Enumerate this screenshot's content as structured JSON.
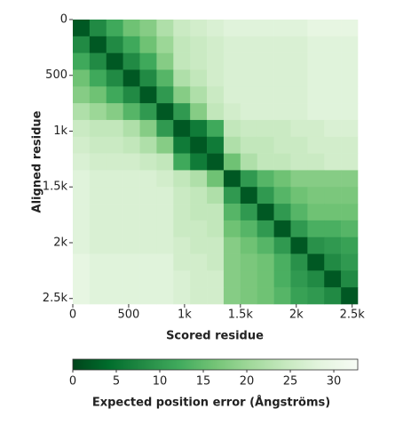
{
  "chart_data": {
    "type": "heatmap",
    "xlabel": "Scored residue",
    "ylabel": "Aligned residue",
    "bins": [
      0,
      150,
      300,
      450,
      600,
      750,
      900,
      1050,
      1200,
      1350,
      1500,
      1650,
      1800,
      1950,
      2100,
      2250,
      2400,
      2550
    ],
    "xlim": [
      0,
      2550
    ],
    "ylim": [
      0,
      2550
    ],
    "xticks": [
      0,
      500,
      {
        "value": 1000,
        "label": "1k"
      },
      {
        "value": 1500,
        "label": "1.5k"
      },
      {
        "value": 2000,
        "label": "2k"
      },
      {
        "value": 2500,
        "label": "2.5k"
      }
    ],
    "yticks": [
      0,
      500,
      {
        "value": 1000,
        "label": "1k"
      },
      {
        "value": 1500,
        "label": "1.5k"
      },
      {
        "value": 2000,
        "label": "2k"
      },
      {
        "value": 2500,
        "label": "2.5k"
      }
    ],
    "values": [
      [
        2,
        8,
        12,
        16,
        18,
        22,
        25,
        26,
        27,
        28,
        28,
        28,
        28,
        28,
        29,
        29,
        29
      ],
      [
        8,
        2,
        8,
        12,
        16,
        20,
        24,
        25,
        26,
        27,
        27,
        27,
        27,
        27,
        28,
        28,
        28
      ],
      [
        12,
        8,
        2,
        8,
        12,
        18,
        24,
        25,
        26,
        27,
        27,
        27,
        27,
        27,
        28,
        28,
        28
      ],
      [
        16,
        12,
        8,
        2,
        8,
        14,
        22,
        24,
        26,
        27,
        27,
        27,
        27,
        27,
        28,
        28,
        28
      ],
      [
        18,
        16,
        12,
        8,
        2,
        10,
        18,
        22,
        25,
        27,
        27,
        27,
        27,
        27,
        28,
        28,
        28
      ],
      [
        22,
        20,
        18,
        14,
        10,
        2,
        10,
        18,
        24,
        26,
        27,
        27,
        27,
        27,
        28,
        28,
        28
      ],
      [
        25,
        24,
        24,
        22,
        18,
        10,
        2,
        6,
        12,
        24,
        25,
        25,
        25,
        26,
        26,
        27,
        27
      ],
      [
        26,
        25,
        25,
        24,
        22,
        18,
        6,
        2,
        6,
        22,
        24,
        24,
        25,
        25,
        26,
        26,
        26
      ],
      [
        27,
        26,
        26,
        26,
        25,
        24,
        12,
        6,
        2,
        16,
        22,
        24,
        24,
        25,
        25,
        26,
        26
      ],
      [
        28,
        27,
        27,
        27,
        27,
        26,
        24,
        22,
        16,
        2,
        10,
        14,
        16,
        18,
        18,
        18,
        18
      ],
      [
        28,
        27,
        27,
        27,
        27,
        27,
        25,
        24,
        22,
        10,
        2,
        10,
        14,
        16,
        17,
        17,
        17
      ],
      [
        28,
        27,
        27,
        27,
        27,
        27,
        25,
        24,
        24,
        14,
        10,
        2,
        10,
        14,
        16,
        16,
        16
      ],
      [
        28,
        27,
        27,
        27,
        27,
        27,
        25,
        25,
        24,
        16,
        14,
        10,
        2,
        10,
        13,
        13,
        14
      ],
      [
        28,
        27,
        27,
        27,
        27,
        27,
        26,
        25,
        25,
        18,
        16,
        14,
        10,
        2,
        9,
        10,
        11
      ],
      [
        29,
        28,
        28,
        28,
        28,
        28,
        26,
        26,
        25,
        18,
        17,
        16,
        13,
        9,
        2,
        8,
        10
      ],
      [
        29,
        28,
        28,
        28,
        28,
        28,
        27,
        26,
        26,
        18,
        17,
        16,
        13,
        10,
        8,
        2,
        8
      ],
      [
        29,
        28,
        28,
        28,
        28,
        28,
        27,
        26,
        26,
        18,
        17,
        16,
        14,
        11,
        10,
        8,
        2
      ]
    ],
    "colormap": [
      "#00441b",
      "#006d2c",
      "#238b45",
      "#41ab5d",
      "#74c476",
      "#a1d99b",
      "#c7e9c0",
      "#e5f5e0",
      "#f7fcf5"
    ],
    "colorbar_label": "Expected position error (Ångströms)",
    "clim": [
      0,
      32.75
    ],
    "colorbar_ticks": [
      0,
      5,
      10,
      15,
      20,
      25,
      30
    ]
  }
}
